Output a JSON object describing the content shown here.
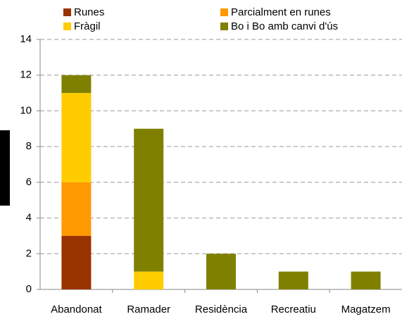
{
  "chart_data": {
    "type": "stacked_bar",
    "categories": [
      "Abandonat",
      "Ramader",
      "Residència",
      "Recreatiu",
      "Magatzem"
    ],
    "series": [
      {
        "name": "Runes",
        "color": "#993300",
        "values": [
          3,
          0,
          0,
          0,
          0
        ]
      },
      {
        "name": "Parcialment en runes",
        "color": "#ff9900",
        "values": [
          3,
          0,
          0,
          0,
          0
        ]
      },
      {
        "name": "Fràgil",
        "color": "#ffcc00",
        "values": [
          5,
          1,
          0,
          0,
          0
        ]
      },
      {
        "name": "Bo i Bo amb canvi d'ús",
        "color": "#808000",
        "values": [
          1,
          8,
          2,
          1,
          1
        ]
      }
    ],
    "ylim": [
      0,
      14
    ],
    "yticks": [
      0,
      2,
      4,
      6,
      8,
      10,
      12,
      14
    ],
    "grid": true,
    "legend": "top"
  }
}
